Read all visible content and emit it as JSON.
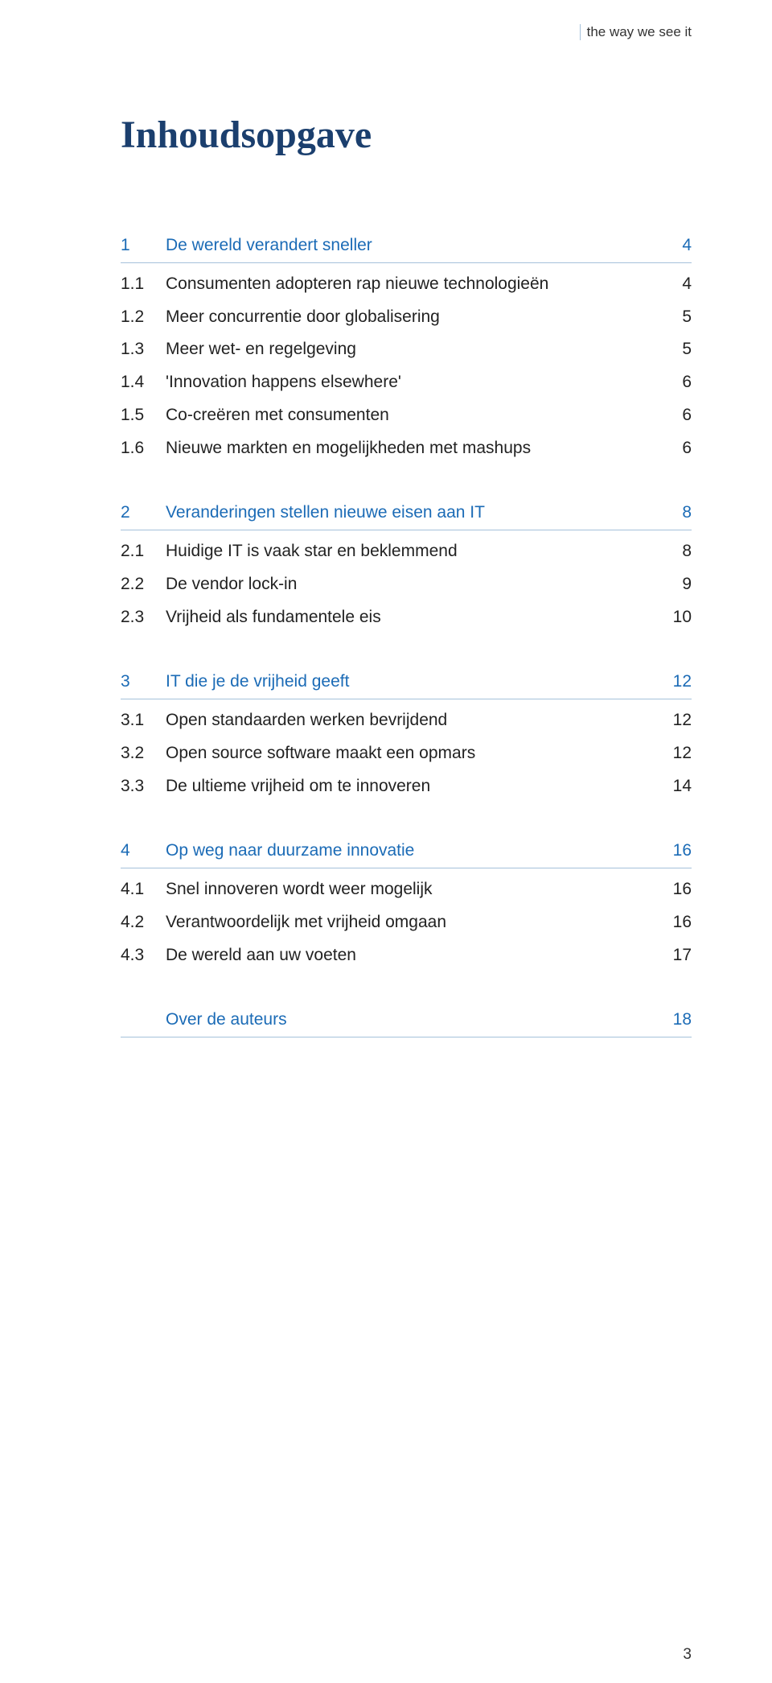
{
  "header": {
    "tag": "the way we see it"
  },
  "title": "Inhoudsopgave",
  "page_number": "3",
  "colors": {
    "heading_navy": "#1b3f6e",
    "link_blue": "#1b6bb6",
    "rule": "#a5c1da",
    "body_text": "#222222",
    "background": "#ffffff"
  },
  "typography": {
    "title_font": "Times New Roman",
    "title_size_pt": 36,
    "body_font": "Arial",
    "body_size_pt": 16
  },
  "toc": [
    {
      "chapter": {
        "num": "1",
        "label": "De wereld verandert sneller",
        "page": "4"
      },
      "items": [
        {
          "num": "1.1",
          "label": "Consumenten adopteren rap nieuwe technologieën",
          "page": "4"
        },
        {
          "num": "1.2",
          "label": "Meer concurrentie door globalisering",
          "page": "5"
        },
        {
          "num": "1.3",
          "label": "Meer wet- en regelgeving",
          "page": "5"
        },
        {
          "num": "1.4",
          "label": "'Innovation happens elsewhere'",
          "page": "6"
        },
        {
          "num": "1.5",
          "label": "Co-creëren met consumenten",
          "page": "6"
        },
        {
          "num": "1.6",
          "label": "Nieuwe markten en mogelijkheden met mashups",
          "page": "6"
        }
      ]
    },
    {
      "chapter": {
        "num": "2",
        "label": "Veranderingen stellen nieuwe eisen aan IT",
        "page": "8"
      },
      "items": [
        {
          "num": "2.1",
          "label": "Huidige IT is vaak star en beklemmend",
          "page": "8"
        },
        {
          "num": "2.2",
          "label": "De vendor lock-in",
          "page": "9"
        },
        {
          "num": "2.3",
          "label": "Vrijheid als fundamentele eis",
          "page": "10"
        }
      ]
    },
    {
      "chapter": {
        "num": "3",
        "label": "IT die je de vrijheid geeft",
        "page": "12"
      },
      "items": [
        {
          "num": "3.1",
          "label": "Open standaarden werken bevrijdend",
          "page": "12"
        },
        {
          "num": "3.2",
          "label": "Open source software maakt een opmars",
          "page": "12"
        },
        {
          "num": "3.3",
          "label": "De ultieme vrijheid om te innoveren",
          "page": "14"
        }
      ]
    },
    {
      "chapter": {
        "num": "4",
        "label": "Op weg naar duurzame innovatie",
        "page": "16"
      },
      "items": [
        {
          "num": "4.1",
          "label": "Snel innoveren wordt weer mogelijk",
          "page": "16"
        },
        {
          "num": "4.2",
          "label": "Verantwoordelijk met vrijheid omgaan",
          "page": "16"
        },
        {
          "num": "4.3",
          "label": "De wereld aan uw voeten",
          "page": "17"
        }
      ]
    },
    {
      "chapter": {
        "num": "",
        "label": "Over de auteurs",
        "page": "18"
      },
      "items": []
    }
  ]
}
